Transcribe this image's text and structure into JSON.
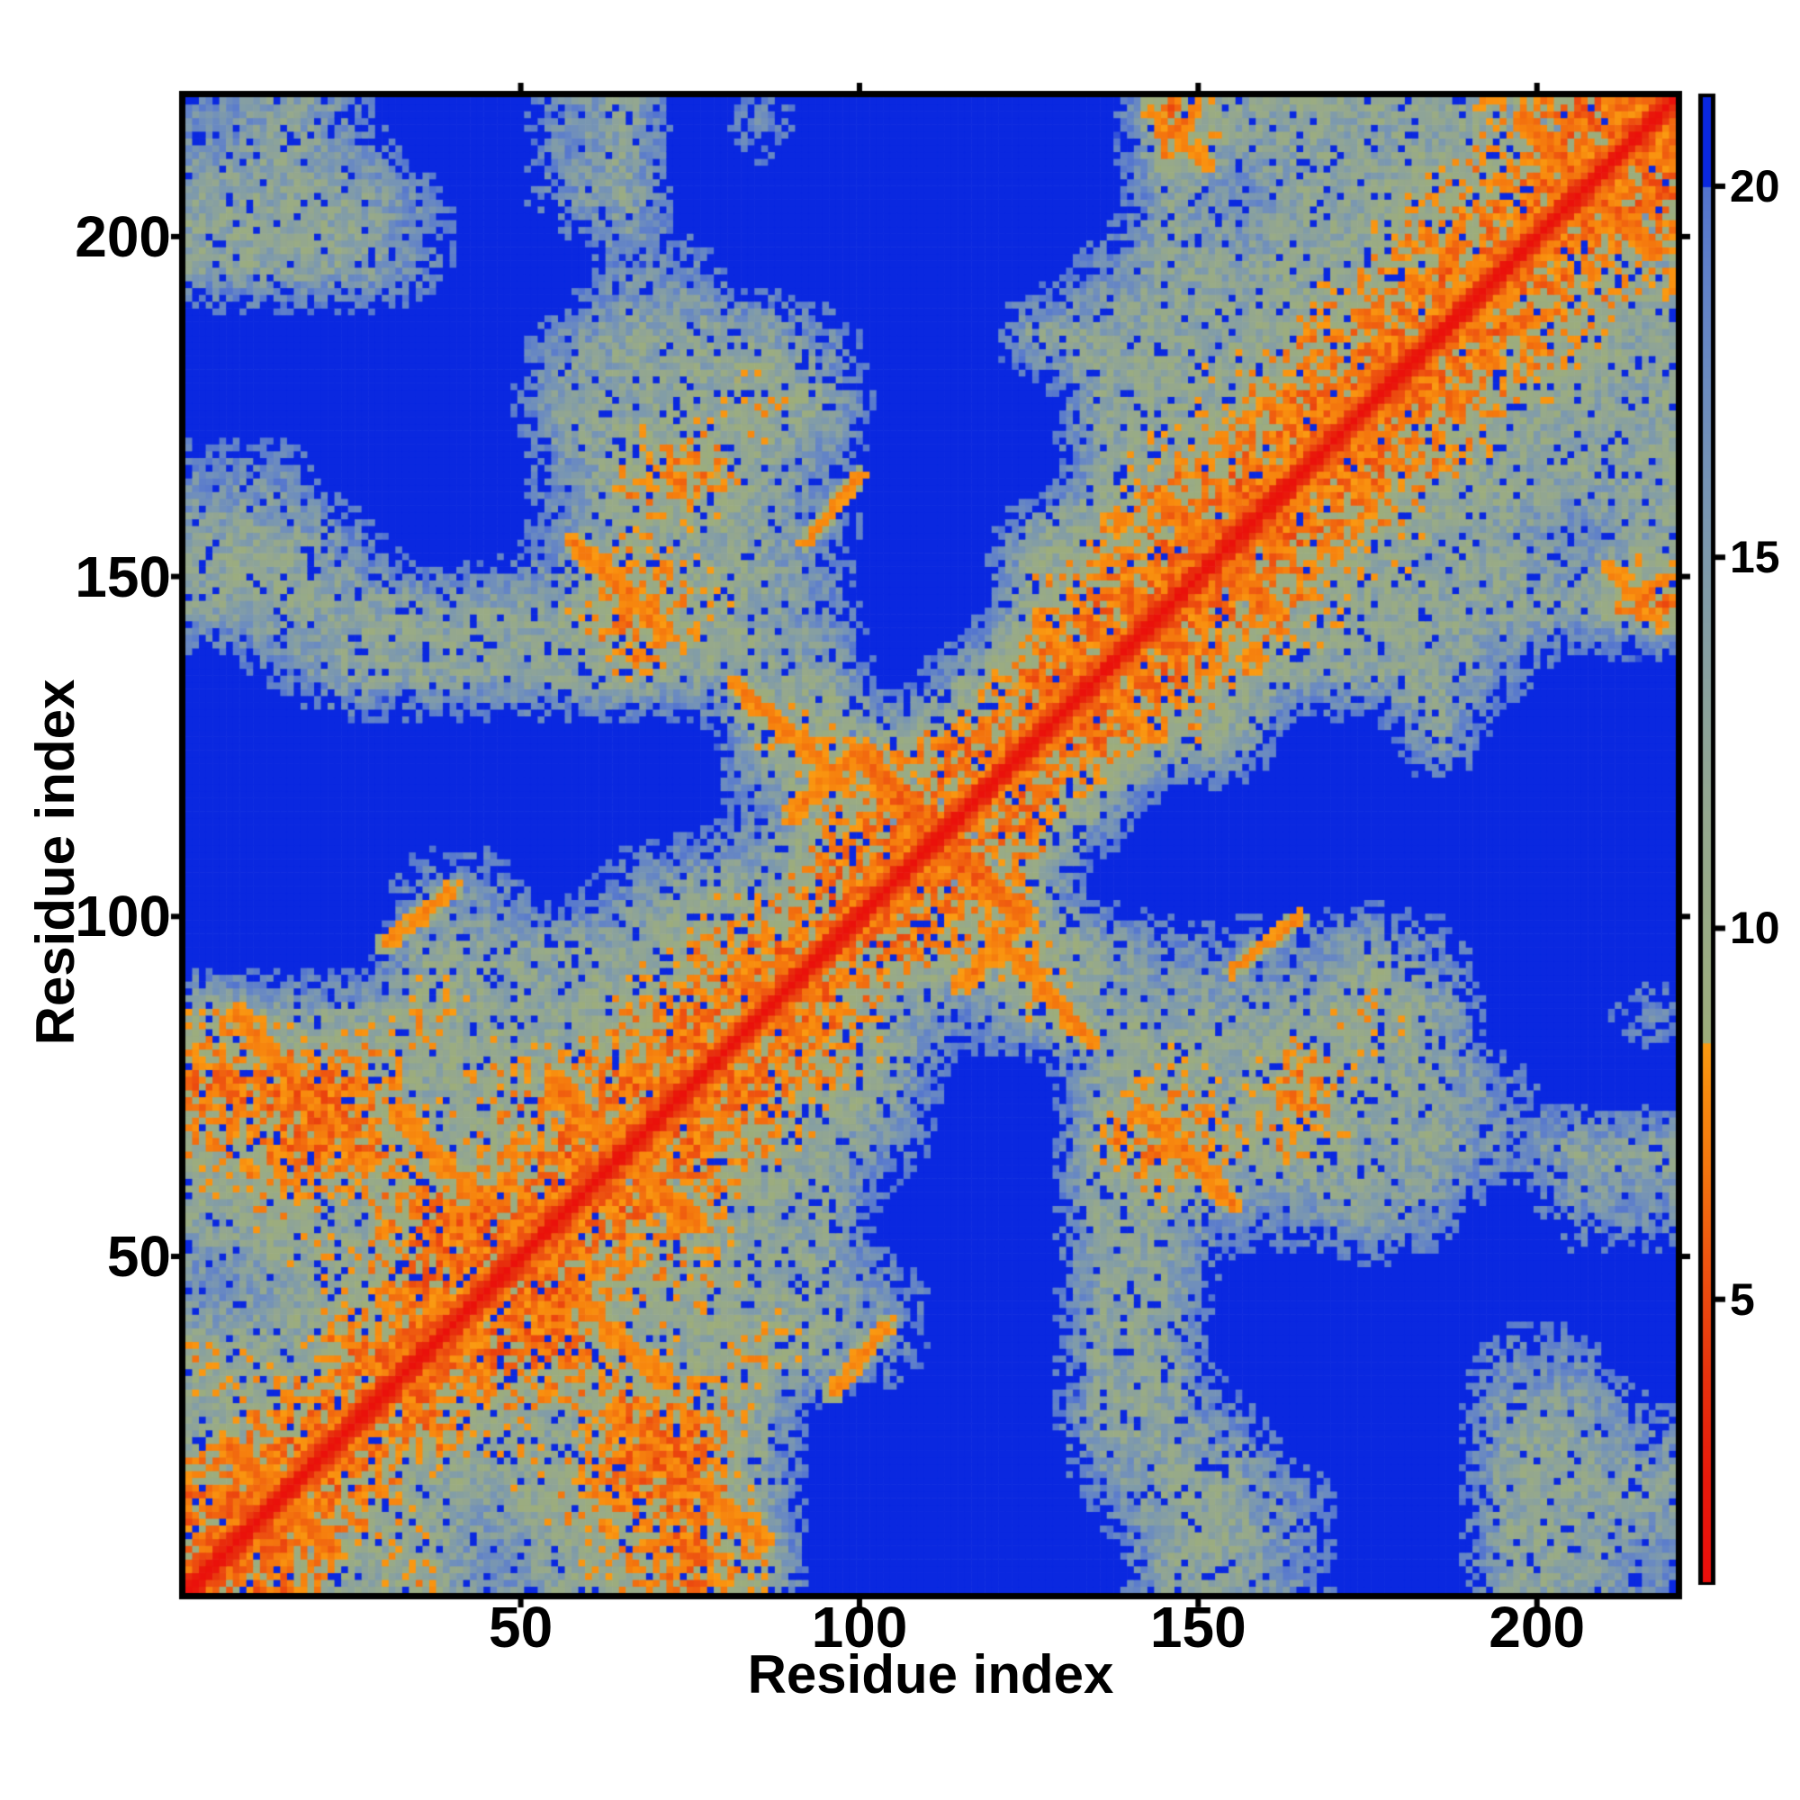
{
  "chart_data": {
    "type": "heatmap",
    "title": "",
    "xlabel": "Residue index",
    "ylabel": "Residue index",
    "x_range": [
      1,
      220
    ],
    "y_range": [
      1,
      220
    ],
    "x_ticks": [
      50,
      100,
      150,
      200
    ],
    "y_ticks": [
      50,
      100,
      150,
      200
    ],
    "grid": false,
    "legend_position": "none",
    "colorbar": {
      "ticks": [
        5,
        10,
        15,
        20
      ],
      "approx_value_range": [
        1.2,
        21.2
      ],
      "blue_cap_above": 20.0,
      "orange_green_boundary": 8.45,
      "side": "right"
    },
    "value_semantics": "inter-residue distance map; low values (red/orange) = close contacts, high values capped as blue",
    "key_colors": {
      "background_far": "#0a28e0",
      "slate_haze": "#6a8ac1",
      "gray_green_mid": "#8ba29c",
      "olive_near": "#9dad7b",
      "orange_contact": "#f88b0e",
      "red_diagonal": "#ea0e0b",
      "frame": "#000000",
      "page_background": "#ffffff"
    },
    "colormap_stops": [
      [
        1.2,
        "#ea0e0b"
      ],
      [
        2.6,
        "#e91a0b"
      ],
      [
        4.0,
        "#e7330d"
      ],
      [
        5.5,
        "#ee5410"
      ],
      [
        6.8,
        "#f4770e"
      ],
      [
        7.8,
        "#f88b0e"
      ],
      [
        8.45,
        "#fa9b12"
      ],
      [
        8.46,
        "#9dad7b"
      ],
      [
        10.0,
        "#99ab86"
      ],
      [
        11.5,
        "#94a78f"
      ],
      [
        13.0,
        "#8ba29c"
      ],
      [
        14.5,
        "#819ca8"
      ],
      [
        16.0,
        "#7694b5"
      ],
      [
        17.5,
        "#6a8ac1"
      ],
      [
        19.0,
        "#5e7fca"
      ],
      [
        19.99,
        "#5374cf"
      ],
      [
        20.0,
        "#0a28e0"
      ],
      [
        26.0,
        "#0a28e0"
      ]
    ],
    "matrix_bin_size_residues": 10,
    "matrix_code_values": {
      "R": 7.5,
      "O": 6.8,
      "Y": 9.8,
      "G": 12.5,
      "S": 17.5,
      "B": 25.5
    },
    "matrix_code_meaning": "estimated distance per 10-residue block: R diagonal block (red line + orange halo), O orange close contacts ~6.8, Y olive ~9.8, G sage ~12.5, S sparse slate ~17.5, B blue/far ~25",
    "coarse_matrix_upper_triangle": [
      "ROGYSGYOYBBBBBGGSBBGGS",
      "ROGGYOOGBBBBSGGSBBGGG",
      "ROYGOOGBBBBGGSBBBGGS",
      "ROOYGYGSBBGGBBBBSSB",
      "ROYYGGSBBGGBBBBBBB",
      "ROYGGBBBGGSSGSBSS",
      "ROYGSBBYOYYGGSGG",
      "ROYGBBGYGOGGSBB",
      "ROGSYGGGGYGBBS",
      "ROYYGSSSGSBBB",
      "ROYBBBBBBBBB",
      "ROGBBBBBBBB",
      "ROYGBBGBBB",
      "ROYGGGSBB",
      "ROYGGGGO",
      "ROYGGSG",
      "ROYGGG",
      "ROYGG",
      "ROYG",
      "ROY",
      "RO",
      "R"
    ],
    "diagonal": "red self-contact line i=j with orange flanking band |i-j|<=4",
    "hairpin_streaks": [
      [
        101,
        123,
        123,
        101,
        5.2,
        2.0
      ],
      [
        99,
        125,
        125,
        99,
        17.0,
        7.5
      ],
      [
        101,
        123,
        123,
        101,
        11.5,
        4.0
      ],
      [
        8,
        86,
        27,
        64,
        6.0,
        1.8
      ],
      [
        32,
        71,
        45,
        57,
        6.2,
        1.6
      ],
      [
        55,
        76,
        75,
        55,
        5.8,
        1.8
      ],
      [
        55,
        76,
        75,
        55,
        11.5,
        3.5
      ],
      [
        7,
        22,
        22,
        7,
        5.4,
        1.8
      ],
      [
        7,
        22,
        22,
        7,
        11.0,
        3.2
      ],
      [
        24,
        38,
        38,
        24,
        6.4,
        1.5
      ],
      [
        41,
        54,
        54,
        41,
        6.4,
        1.5
      ],
      [
        58,
        155,
        71,
        142,
        6.2,
        1.7
      ],
      [
        120,
        97,
        134,
        82,
        6.2,
        1.7
      ],
      [
        145,
        161,
        161,
        145,
        5.5,
        1.9
      ],
      [
        145,
        161,
        161,
        145,
        11.5,
        3.5
      ],
      [
        160,
        176,
        176,
        160,
        6.4,
        1.6
      ],
      [
        185,
        199,
        199,
        185,
        6.4,
        1.6
      ],
      [
        198,
        217,
        217,
        198,
        5.4,
        1.9
      ],
      [
        198,
        217,
        217,
        198,
        12.0,
        3.5
      ],
      [
        128,
        141,
        141,
        128,
        6.2,
        1.7
      ],
      [
        90,
        115,
        100,
        125,
        6.2,
        1.7
      ],
      [
        30,
        96,
        40,
        104,
        6.6,
        1.5
      ],
      [
        211,
        151,
        219,
        143,
        6.5,
        1.6
      ],
      [
        155,
        92,
        165,
        100,
        6.8,
        1.4
      ]
    ]
  }
}
